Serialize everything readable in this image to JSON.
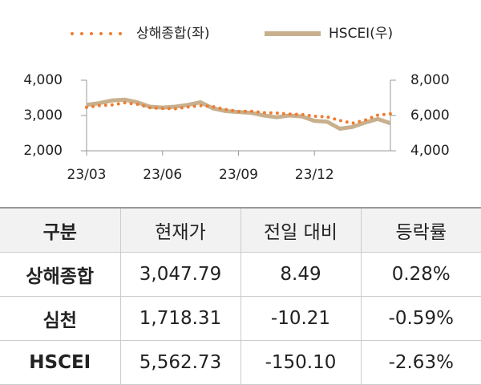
{
  "chart_data": {
    "type": "line",
    "categories": [
      "23/03",
      null,
      null,
      null,
      null,
      null,
      "23/06",
      null,
      null,
      null,
      null,
      null,
      "23/09",
      null,
      null,
      null,
      null,
      null,
      "23/12",
      null,
      null,
      null,
      null,
      null,
      null
    ],
    "series": [
      {
        "name": "상해종합(좌)",
        "color": "#ed7d31",
        "axis": "y",
        "values": [
          3230,
          3280,
          3300,
          3360,
          3320,
          3220,
          3200,
          3190,
          3240,
          3280,
          3250,
          3170,
          3110,
          3120,
          3080,
          3070,
          3040,
          3030,
          2980,
          2960,
          2860,
          2780,
          2870,
          3010,
          3048
        ]
      },
      {
        "name": "HSCEI(우)",
        "color": "#c8b08e",
        "axis": "y2",
        "values": [
          6600,
          6700,
          6850,
          6900,
          6750,
          6500,
          6450,
          6500,
          6600,
          6750,
          6400,
          6250,
          6200,
          6150,
          6000,
          5900,
          6000,
          5950,
          5700,
          5650,
          5250,
          5350,
          5600,
          5800,
          5563
        ]
      }
    ],
    "ylim": [
      2000,
      4000
    ],
    "yticks": [
      {
        "value": 2000,
        "label": "2,000"
      },
      {
        "value": 3000,
        "label": "3,000"
      },
      {
        "value": 4000,
        "label": "4,000"
      }
    ],
    "y2lim": [
      4000,
      8000
    ],
    "y2ticks": [
      {
        "value": 4000,
        "label": "4,000"
      },
      {
        "value": 6000,
        "label": "6,000"
      },
      {
        "value": 8000,
        "label": "8,000"
      }
    ],
    "legend": "top"
  },
  "table": {
    "header": [
      "구분",
      "현재가",
      "전일 대비",
      "등락률"
    ],
    "rows": [
      [
        "상해종합",
        "3,047.79",
        "8.49",
        "0.28%"
      ],
      [
        "심천",
        "1,718.31",
        "-10.21",
        "-0.59%"
      ],
      [
        "HSCEI",
        "5,562.73",
        "-150.10",
        "-2.63%"
      ]
    ]
  }
}
